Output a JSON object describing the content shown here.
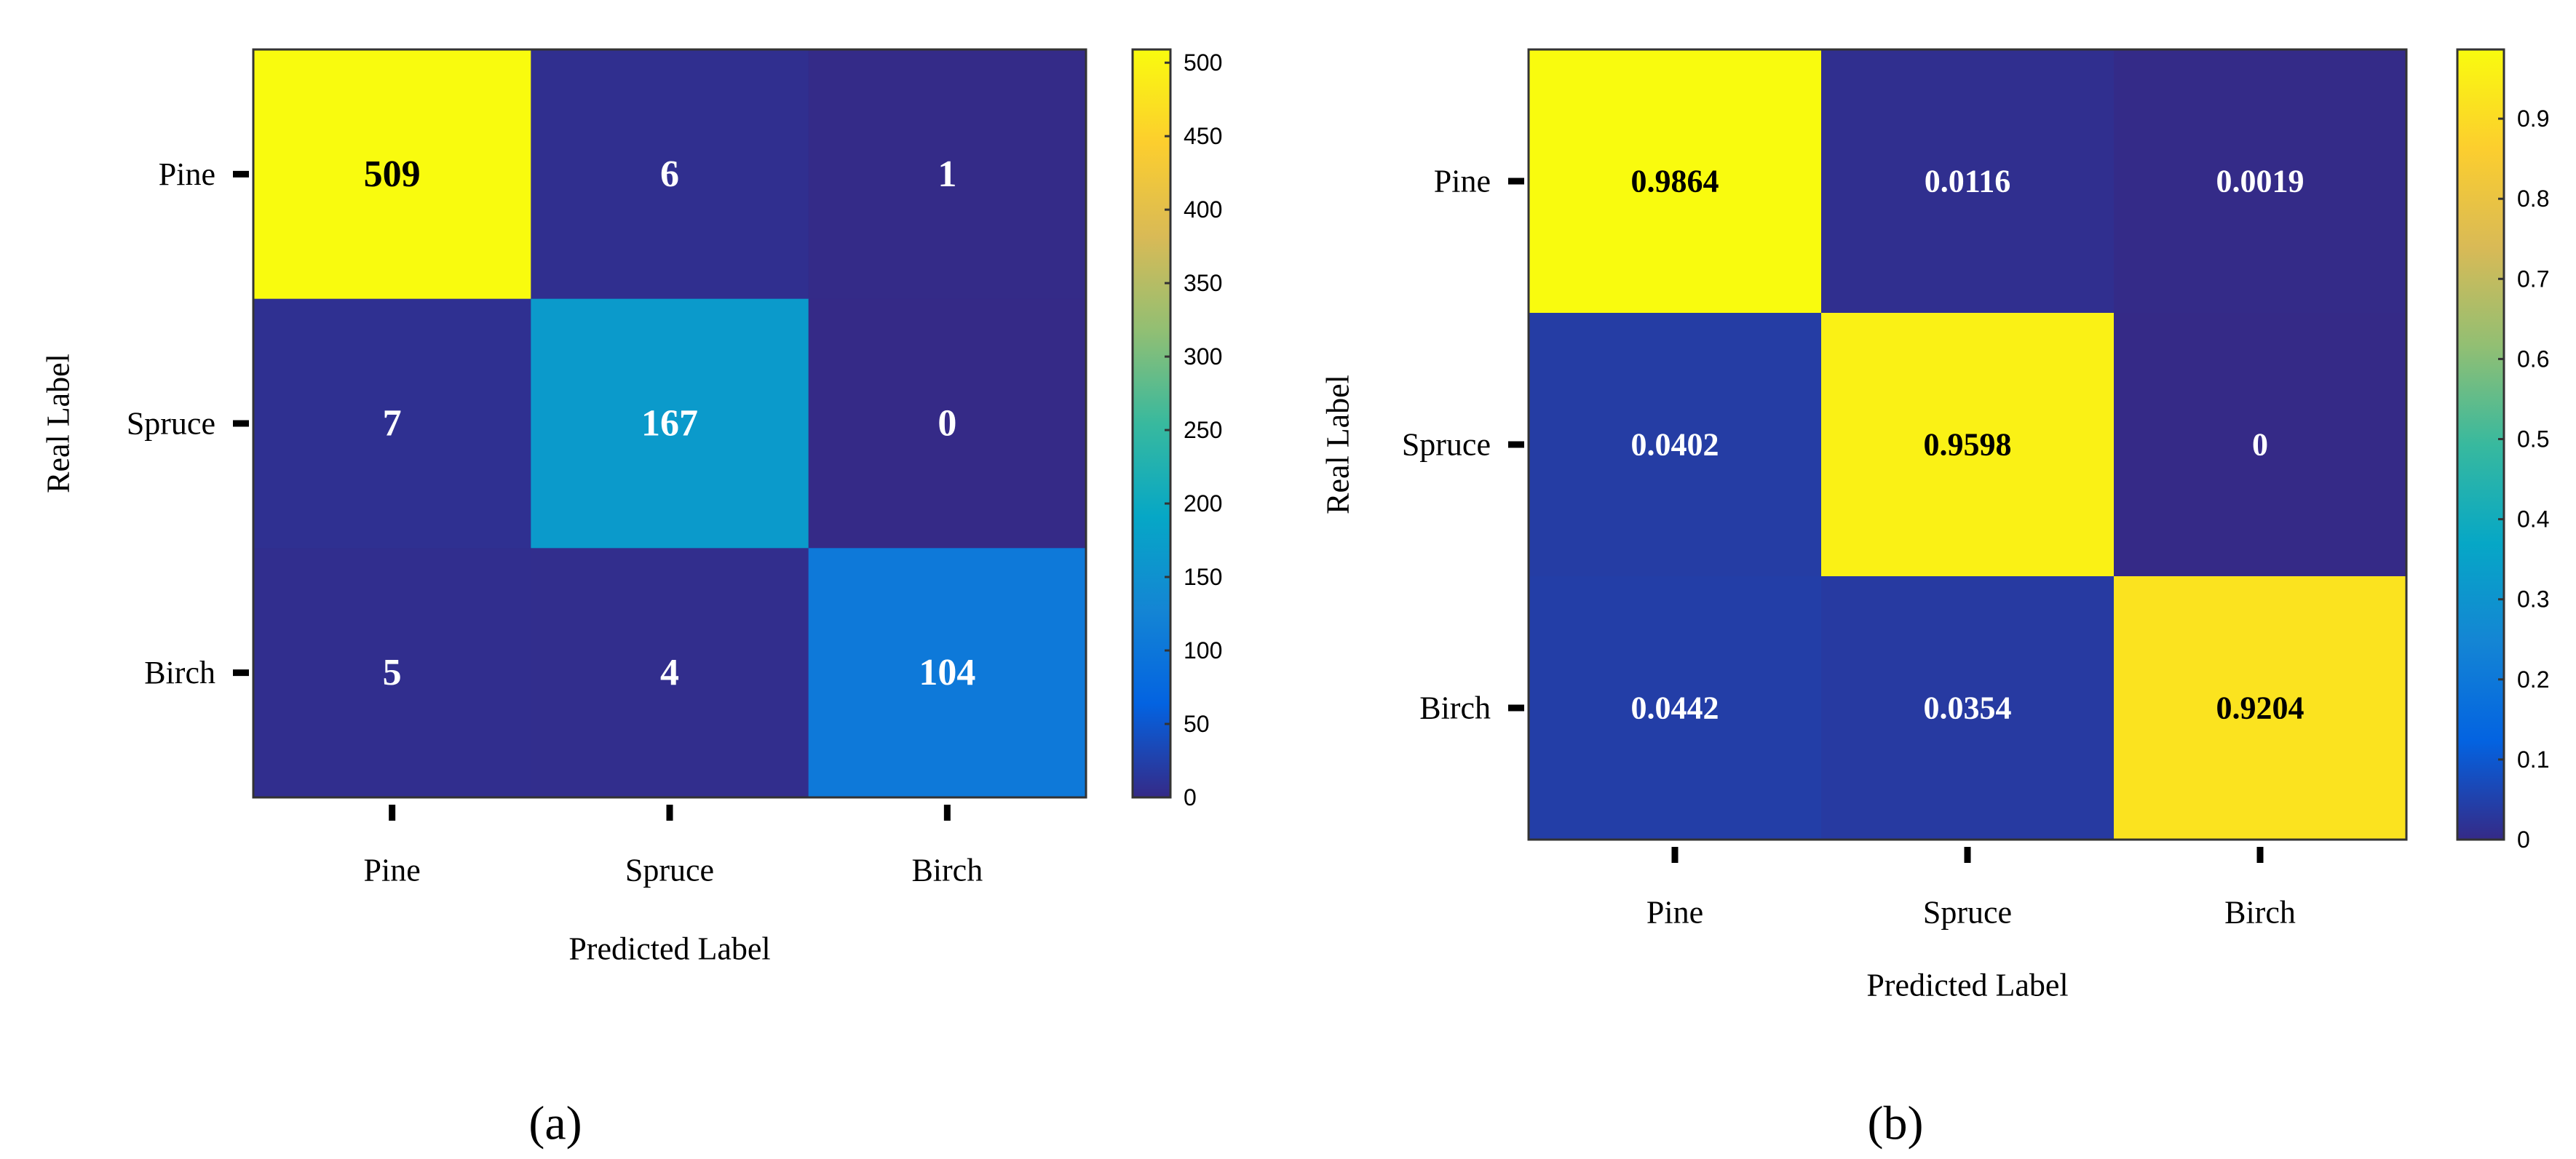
{
  "chart_data": [
    {
      "type": "heatmap",
      "panel_label": "(a)",
      "xlabel": "Predicted Label",
      "ylabel": "Real Label",
      "x_categories": [
        "Pine",
        "Spruce",
        "Birch"
      ],
      "y_categories": [
        "Pine",
        "Spruce",
        "Birch"
      ],
      "values": [
        [
          509,
          6,
          1
        ],
        [
          7,
          167,
          0
        ],
        [
          5,
          4,
          104
        ]
      ],
      "cell_labels": [
        [
          "509",
          "6",
          "1"
        ],
        [
          "7",
          "167",
          "0"
        ],
        [
          "5",
          "4",
          "104"
        ]
      ],
      "colorbar": {
        "range": [
          0,
          509
        ],
        "ticks": [
          0,
          50,
          100,
          150,
          200,
          250,
          300,
          350,
          400,
          450,
          500
        ],
        "tick_labels": [
          "0",
          "50",
          "100",
          "150",
          "200",
          "250",
          "300",
          "350",
          "400",
          "450",
          "500"
        ]
      },
      "colormap": "parula"
    },
    {
      "type": "heatmap",
      "panel_label": "(b)",
      "xlabel": "Predicted Label",
      "ylabel": "Real Label",
      "x_categories": [
        "Pine",
        "Spruce",
        "Birch"
      ],
      "y_categories": [
        "Pine",
        "Spruce",
        "Birch"
      ],
      "values": [
        [
          0.9864,
          0.0116,
          0.0019
        ],
        [
          0.0402,
          0.9598,
          0
        ],
        [
          0.0442,
          0.0354,
          0.9204
        ]
      ],
      "cell_labels": [
        [
          "0.9864",
          "0.0116",
          "0.0019"
        ],
        [
          "0.0402",
          "0.9598",
          "0"
        ],
        [
          "0.0442",
          "0.0354",
          "0.9204"
        ]
      ],
      "colorbar": {
        "range": [
          0,
          0.9864
        ],
        "ticks": [
          0,
          0.1,
          0.2,
          0.3,
          0.4,
          0.5,
          0.6,
          0.7,
          0.8,
          0.9
        ],
        "tick_labels": [
          "0",
          "0.1",
          "0.2",
          "0.3",
          "0.4",
          "0.5",
          "0.6",
          "0.7",
          "0.8",
          "0.9"
        ]
      },
      "colormap": "parula"
    }
  ],
  "colormap_stops": [
    "#352a87",
    "#0363e1",
    "#1485d4",
    "#06a7c6",
    "#38b99e",
    "#92bf73",
    "#d9ba56",
    "#fcce2e",
    "#f9fb0e"
  ],
  "text_colors": {
    "light_cell": "#000000",
    "dark_cell": "#ffffff"
  }
}
